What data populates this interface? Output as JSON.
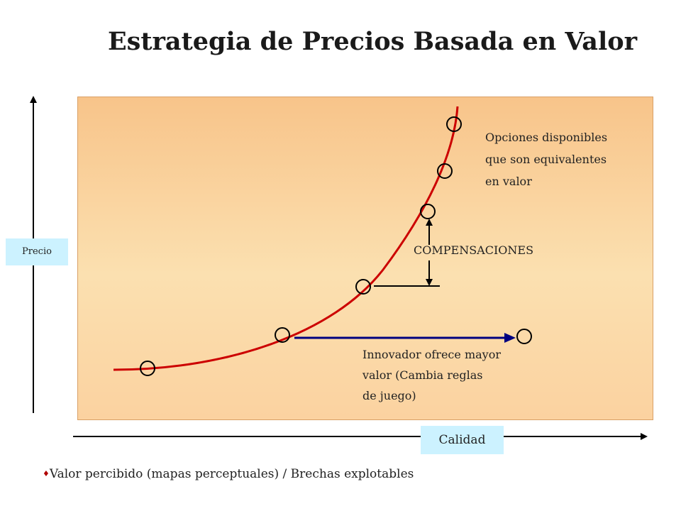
{
  "title": "Estrategia de Precios Basada en Valor",
  "axes": {
    "y_label": "Precio",
    "x_label": "Calidad"
  },
  "annotations": {
    "options_lines": [
      "Opciones disponibles",
      "que son equivalentes",
      "en valor"
    ],
    "compensations": "COMPENSACIONES",
    "innovator_lines": [
      "Innovador ofrece mayor",
      "valor (Cambia reglas",
      "de juego)"
    ]
  },
  "bullet": {
    "symbol": "♦",
    "text": "Valor percibido (mapas perceptuales) / Brechas explotables"
  },
  "colors": {
    "curve": "#cc0000",
    "innovator_arrow": "#000080",
    "axis_box": "#ccf2ff"
  }
}
